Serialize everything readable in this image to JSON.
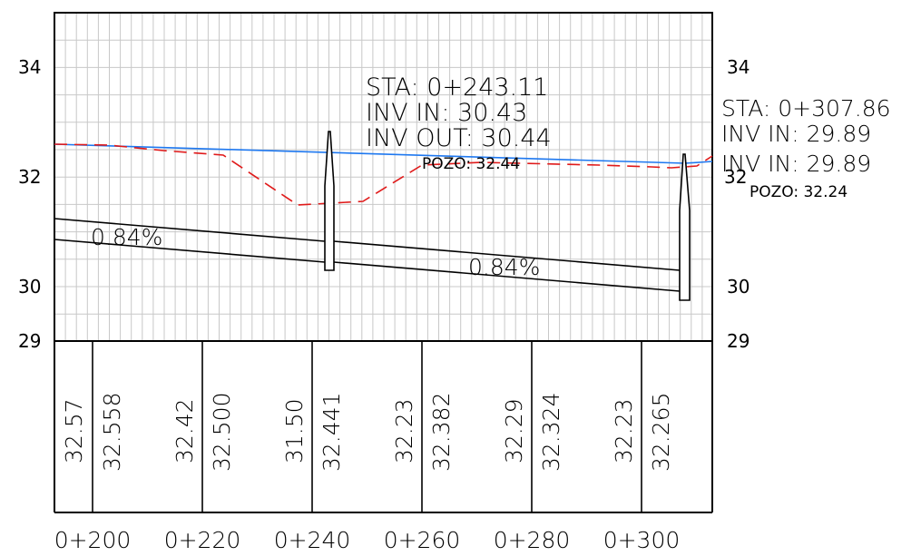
{
  "y_axis": {
    "ticks": [
      "34",
      "32",
      "30",
      "29"
    ]
  },
  "stations": [
    "0+200",
    "0+220",
    "0+240",
    "0+260",
    "0+280",
    "0+300"
  ],
  "elevations": [
    "32.57",
    "32.558",
    "32.42",
    "32.500",
    "31.50",
    "32.441",
    "32.23",
    "32.382",
    "32.29",
    "32.324",
    "32.23",
    "32.265"
  ],
  "labels": {
    "manhole1": {
      "sta": "STA: 0+243.11",
      "inv_in": "INV  IN: 30.43",
      "inv_out": "INV  OUT: 30.44",
      "pozo": "POZO: 32.44"
    },
    "manhole2": {
      "sta": "STA: 0+307.86",
      "inv_in_1": "INV  IN: 29.89",
      "inv_in_2": "INV  IN: 29.89",
      "pozo": "POZO: 32.24"
    }
  },
  "pipes": [
    {
      "slope_label": "0.84%",
      "start_station": 193.0,
      "end_station": 243.11
    },
    {
      "slope_label": "0.84%",
      "start_station": 243.11,
      "end_station": 307.86
    }
  ],
  "colors": {
    "design_grade": "#1e78f0",
    "existing_ground": "#e01a1a",
    "grid": "#c8c8c8",
    "line": "#000000"
  }
}
